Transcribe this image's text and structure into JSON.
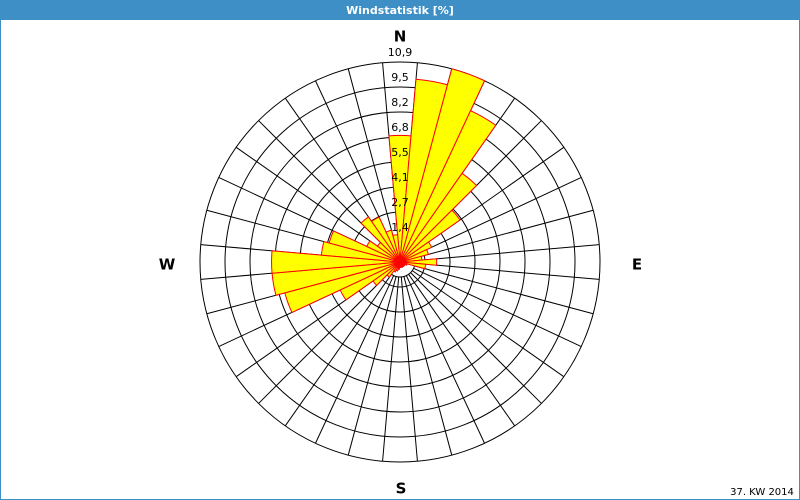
{
  "chart_data": {
    "type": "windrose",
    "title": "Windstatistik [%]",
    "footer": "37. KW 2014",
    "compass_labels": [
      "N",
      "E",
      "S",
      "W"
    ],
    "x": [
      0,
      10,
      20,
      30,
      40,
      50,
      60,
      70,
      80,
      90,
      100,
      110,
      120,
      130,
      140,
      150,
      160,
      170,
      180,
      190,
      200,
      210,
      220,
      230,
      240,
      250,
      260,
      270,
      280,
      290,
      300,
      310,
      320,
      330,
      340,
      350
    ],
    "values": [
      6.9,
      10.0,
      10.9,
      9.1,
      5.9,
      4.0,
      1.9,
      1.6,
      1.2,
      2.0,
      1.4,
      0.4,
      0.3,
      0.3,
      0.3,
      0.3,
      0.3,
      0.3,
      0.3,
      0.4,
      0.5,
      0.6,
      1.0,
      1.8,
      3.6,
      6.5,
      7.0,
      7.0,
      4.3,
      4.0,
      2.0,
      1.5,
      3.0,
      2.7,
      1.8,
      1.5
    ],
    "color": "#ffff00",
    "edge_color": "#ff0000",
    "rlim": [
      0,
      10.9
    ],
    "rticks": [
      {
        "value": 1.3625,
        "label": "1,4"
      },
      {
        "value": 2.725,
        "label": "2,7"
      },
      {
        "value": 4.0875,
        "label": "4,1"
      },
      {
        "value": 5.45,
        "label": "5,5"
      },
      {
        "value": 6.8125,
        "label": "6,8"
      },
      {
        "value": 8.175,
        "label": "8,2"
      },
      {
        "value": 9.5375,
        "label": "9,5"
      },
      {
        "value": 10.9,
        "label": "10,9"
      }
    ],
    "grid": true
  }
}
